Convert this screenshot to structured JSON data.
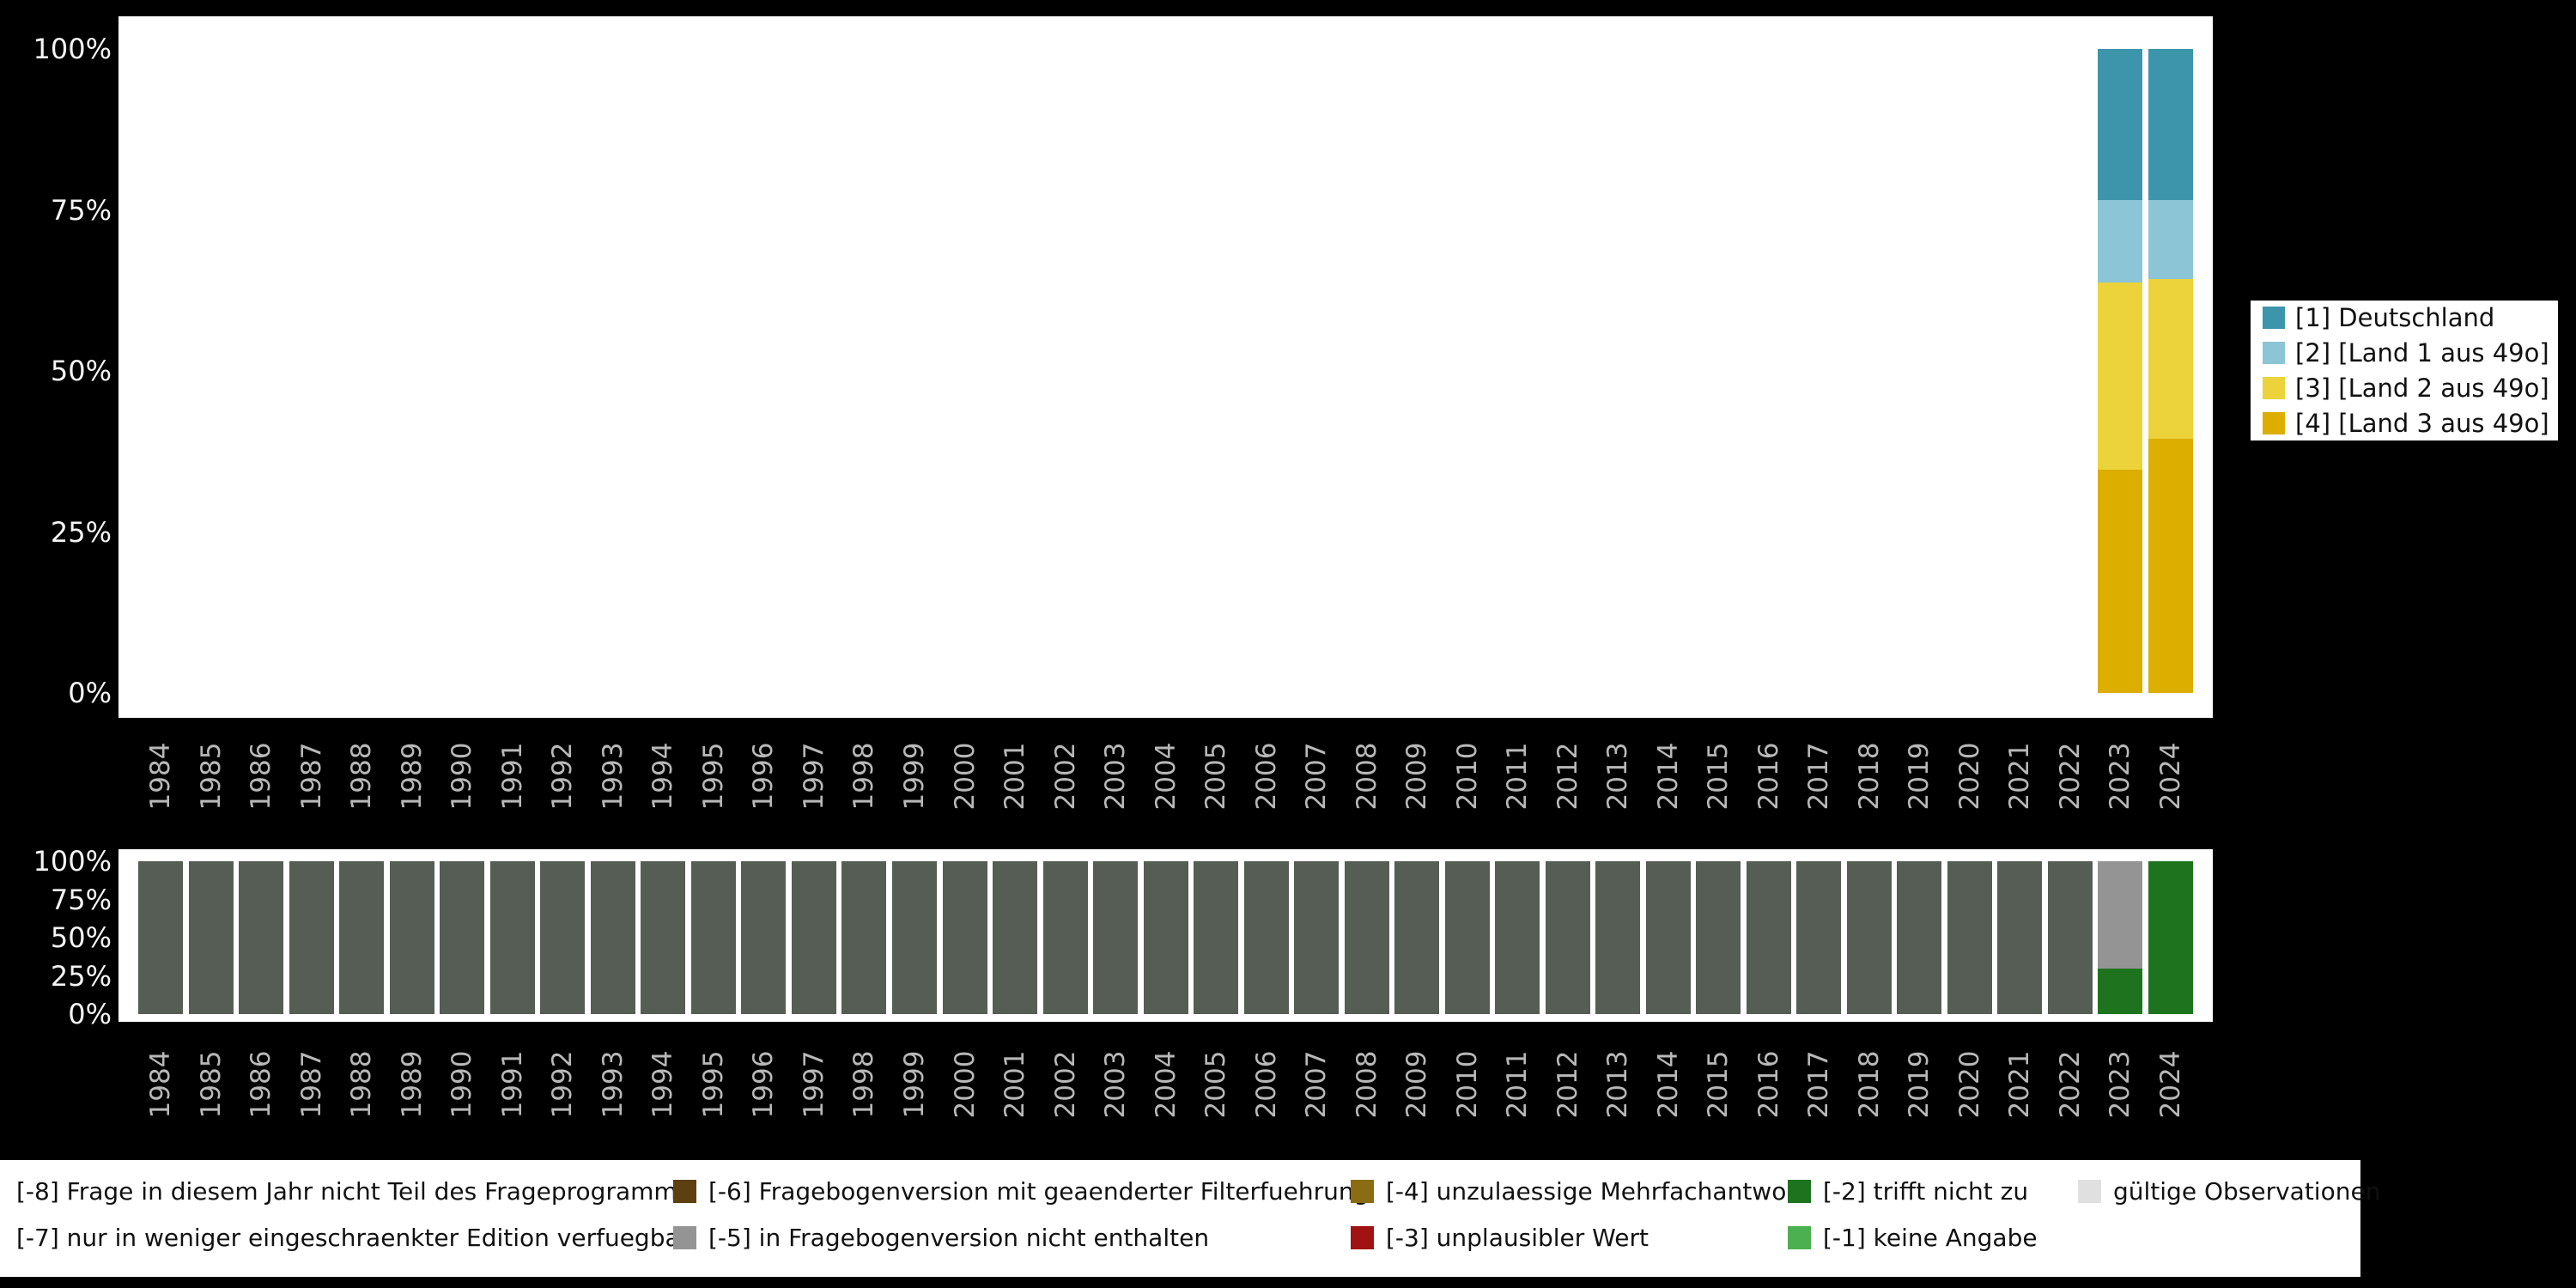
{
  "colors": {
    "background": "#000000",
    "plot_background": "#ffffff",
    "axis_year_text": "#b8b8b8",
    "axis_percent_text": "#f5f5f5",
    "legend_text": "#111111"
  },
  "top_chart": {
    "y_ticks": [
      "100%",
      "75%",
      "50%",
      "25%",
      "0%"
    ],
    "legend": {
      "items": [
        {
          "label": "[1] Deutschland",
          "color": "#3d95ac"
        },
        {
          "label": "[2] [Land 1 aus 49o]",
          "color": "#8bc5d6"
        },
        {
          "label": "[3] [Land 2 aus 49o]",
          "color": "#ecd23b"
        },
        {
          "label": "[4] [Land 3 aus 49o]",
          "color": "#dcae00"
        }
      ]
    }
  },
  "bottom_chart": {
    "y_ticks": [
      "100%",
      "75%",
      "50%",
      "25%",
      "0%"
    ]
  },
  "missings_legend": {
    "rows": [
      [
        {
          "label": "[-8] Frage in diesem Jahr nicht Teil des Frageprogramms",
          "color": null
        },
        {
          "label": "[-6] Fragebogenversion mit geaenderter Filterfuehrung",
          "color": "#5d3f10"
        },
        {
          "label": "[-4] unzulaessige Mehrfachantwort",
          "color": "#8a6d12"
        },
        {
          "label": "[-2] trifft nicht zu",
          "color": "#1e741e"
        },
        {
          "label": "gültige Observationen",
          "color": "#e0e0e0"
        }
      ],
      [
        {
          "label": "[-7] nur in weniger eingeschraenkter Edition verfuegbar",
          "color": null
        },
        {
          "label": "[-5] in Fragebogenversion nicht enthalten",
          "color": "#949494"
        },
        {
          "label": "[-3] unplausibler Wert",
          "color": "#a11212"
        },
        {
          "label": "[-1] keine Angabe",
          "color": "#4caf50"
        }
      ]
    ]
  },
  "chart_data": [
    {
      "type": "bar",
      "stacked": true,
      "unit": "percent",
      "title": "",
      "xlabel": "",
      "ylabel": "",
      "ylim": [
        0,
        100
      ],
      "legend_position": "right",
      "grid": false,
      "x": [
        "1984",
        "1985",
        "1986",
        "1987",
        "1988",
        "1989",
        "1990",
        "1991",
        "1992",
        "1993",
        "1994",
        "1995",
        "1996",
        "1997",
        "1998",
        "1999",
        "2000",
        "2001",
        "2002",
        "2003",
        "2004",
        "2005",
        "2006",
        "2007",
        "2008",
        "2009",
        "2010",
        "2011",
        "2012",
        "2013",
        "2014",
        "2015",
        "2016",
        "2017",
        "2018",
        "2019",
        "2020",
        "2021",
        "2022",
        "2023",
        "2024"
      ],
      "series": [
        {
          "name": "[4] [Land 3 aus 49o]",
          "color": "#dcae00",
          "values": [
            0,
            0,
            0,
            0,
            0,
            0,
            0,
            0,
            0,
            0,
            0,
            0,
            0,
            0,
            0,
            0,
            0,
            0,
            0,
            0,
            0,
            0,
            0,
            0,
            0,
            0,
            0,
            0,
            0,
            0,
            0,
            0,
            0,
            0,
            0,
            0,
            0,
            0,
            0,
            34.7,
            39.5
          ]
        },
        {
          "name": "[3] [Land 2 aus 49o]",
          "color": "#ecd23b",
          "values": [
            0,
            0,
            0,
            0,
            0,
            0,
            0,
            0,
            0,
            0,
            0,
            0,
            0,
            0,
            0,
            0,
            0,
            0,
            0,
            0,
            0,
            0,
            0,
            0,
            0,
            0,
            0,
            0,
            0,
            0,
            0,
            0,
            0,
            0,
            0,
            0,
            0,
            0,
            0,
            29.0,
            24.8
          ]
        },
        {
          "name": "[2] [Land 1 aus 49o]",
          "color": "#8bc5d6",
          "values": [
            0,
            0,
            0,
            0,
            0,
            0,
            0,
            0,
            0,
            0,
            0,
            0,
            0,
            0,
            0,
            0,
            0,
            0,
            0,
            0,
            0,
            0,
            0,
            0,
            0,
            0,
            0,
            0,
            0,
            0,
            0,
            0,
            0,
            0,
            0,
            0,
            0,
            0,
            0,
            12.8,
            12.2
          ]
        },
        {
          "name": "[1] Deutschland",
          "color": "#3d95ac",
          "values": [
            0,
            0,
            0,
            0,
            0,
            0,
            0,
            0,
            0,
            0,
            0,
            0,
            0,
            0,
            0,
            0,
            0,
            0,
            0,
            0,
            0,
            0,
            0,
            0,
            0,
            0,
            0,
            0,
            0,
            0,
            0,
            0,
            0,
            0,
            0,
            0,
            0,
            0,
            0,
            23.5,
            23.5
          ]
        }
      ]
    },
    {
      "type": "bar",
      "stacked": true,
      "unit": "percent",
      "title": "",
      "xlabel": "",
      "ylabel": "",
      "ylim": [
        0,
        100
      ],
      "legend_position": "bottom",
      "grid": false,
      "x": [
        "1984",
        "1985",
        "1986",
        "1987",
        "1988",
        "1989",
        "1990",
        "1991",
        "1992",
        "1993",
        "1994",
        "1995",
        "1996",
        "1997",
        "1998",
        "1999",
        "2000",
        "2001",
        "2002",
        "2003",
        "2004",
        "2005",
        "2006",
        "2007",
        "2008",
        "2009",
        "2010",
        "2011",
        "2012",
        "2013",
        "2014",
        "2015",
        "2016",
        "2017",
        "2018",
        "2019",
        "2020",
        "2021",
        "2022",
        "2023",
        "2024"
      ],
      "series": [
        {
          "name": "[-2] trifft nicht zu",
          "color": "#1e741e",
          "values": [
            0,
            0,
            0,
            0,
            0,
            0,
            0,
            0,
            0,
            0,
            0,
            0,
            0,
            0,
            0,
            0,
            0,
            0,
            0,
            0,
            0,
            0,
            0,
            0,
            0,
            0,
            0,
            0,
            0,
            0,
            0,
            0,
            0,
            0,
            0,
            0,
            0,
            0,
            0,
            30,
            100
          ]
        },
        {
          "name": "[-5] in Fragebogenversion nicht enthalten",
          "color": "#949494",
          "values": [
            0,
            0,
            0,
            0,
            0,
            0,
            0,
            0,
            0,
            0,
            0,
            0,
            0,
            0,
            0,
            0,
            0,
            0,
            0,
            0,
            0,
            0,
            0,
            0,
            0,
            0,
            0,
            0,
            0,
            0,
            0,
            0,
            0,
            0,
            0,
            0,
            0,
            0,
            0,
            70,
            0
          ]
        },
        {
          "name": "[-8] Frage in diesem Jahr nicht Teil des Frageprogramms",
          "color": "#555d55",
          "values": [
            100,
            100,
            100,
            100,
            100,
            100,
            100,
            100,
            100,
            100,
            100,
            100,
            100,
            100,
            100,
            100,
            100,
            100,
            100,
            100,
            100,
            100,
            100,
            100,
            100,
            100,
            100,
            100,
            100,
            100,
            100,
            100,
            100,
            100,
            100,
            100,
            100,
            100,
            100,
            0,
            0
          ]
        }
      ]
    }
  ]
}
